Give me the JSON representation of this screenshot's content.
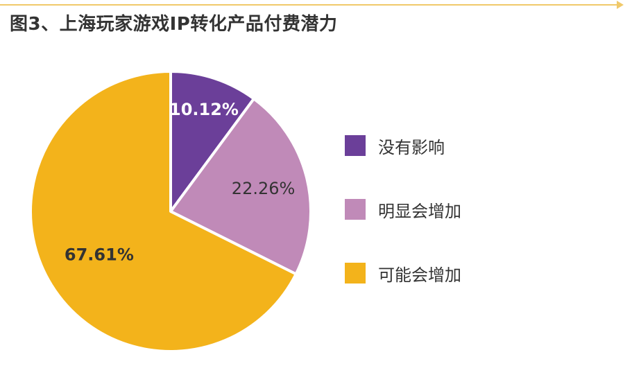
{
  "title": "图3、上海玩家游戏IP转化产品付费潜力",
  "chart_data": {
    "type": "pie",
    "series": [
      {
        "name": "没有影响",
        "value": 10.12,
        "label": "10.12%",
        "color": "#6b3f99"
      },
      {
        "name": "明显会增加",
        "value": 22.26,
        "label": "22.26%",
        "color": "#c08ab8"
      },
      {
        "name": "可能会增加",
        "value": 67.61,
        "label": "67.61%",
        "color": "#f3b31b"
      }
    ],
    "legend_position": "right",
    "start_angle": "12 o'clock",
    "direction": "clockwise"
  },
  "legend": [
    {
      "label": "没有影响",
      "color": "#6b3f99"
    },
    {
      "label": "明显会增加",
      "color": "#c08ab8"
    },
    {
      "label": "可能会增加",
      "color": "#f3b31b"
    }
  ],
  "colors": {
    "label_light": "#ffffff",
    "label_dark": "#333333",
    "accent_rule": "#f0c96a"
  }
}
